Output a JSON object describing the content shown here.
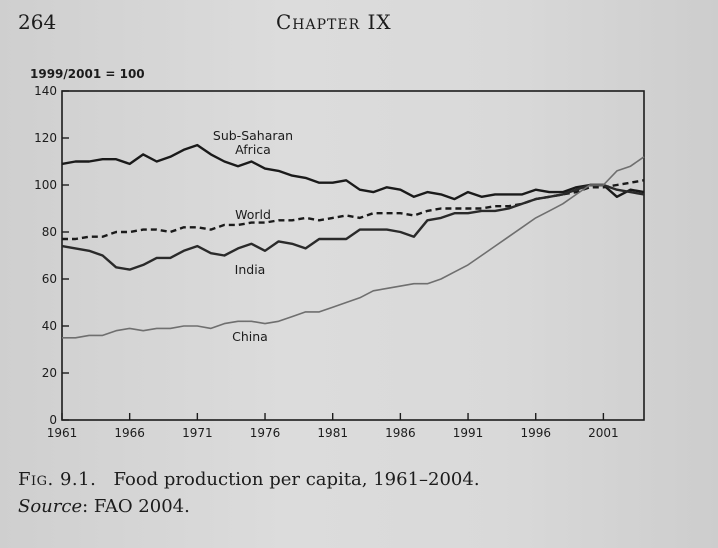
{
  "header": {
    "page_number": "264",
    "chapter": "Chapter IX"
  },
  "caption": {
    "figure_label": "Fig. 9.1.",
    "title": "Food production per capita, 1961–2004.",
    "source_label": "Source",
    "source_text": ": FAO 2004."
  },
  "chart_data": {
    "type": "line",
    "index_label": "1999/2001 = 100",
    "ylim": [
      0,
      140
    ],
    "yticks": [
      0,
      20,
      40,
      60,
      80,
      100,
      120,
      140
    ],
    "xlim": [
      1961,
      2004
    ],
    "xticks": [
      1961,
      1966,
      1971,
      1976,
      1981,
      1986,
      1991,
      1996,
      2001
    ],
    "x": [
      1961,
      1962,
      1963,
      1964,
      1965,
      1966,
      1967,
      1968,
      1969,
      1970,
      1971,
      1972,
      1973,
      1974,
      1975,
      1976,
      1977,
      1978,
      1979,
      1980,
      1981,
      1982,
      1983,
      1984,
      1985,
      1986,
      1987,
      1988,
      1989,
      1990,
      1991,
      1992,
      1993,
      1994,
      1995,
      1996,
      1997,
      1998,
      1999,
      2000,
      2001,
      2002,
      2003,
      2004
    ],
    "series": [
      {
        "name": "Sub-Saharan Africa",
        "label_lines": [
          "Sub-Saharan",
          "Africa"
        ],
        "style": "solid",
        "values": [
          109,
          110,
          110,
          111,
          111,
          109,
          113,
          110,
          112,
          115,
          117,
          113,
          110,
          108,
          110,
          107,
          106,
          104,
          103,
          101,
          101,
          102,
          98,
          97,
          99,
          98,
          95,
          97,
          96,
          94,
          97,
          95,
          96,
          96,
          96,
          98,
          97,
          97,
          99,
          100,
          100,
          95,
          98,
          97
        ]
      },
      {
        "name": "World",
        "label_lines": [
          "World"
        ],
        "style": "dashed",
        "values": [
          77,
          77,
          78,
          78,
          80,
          80,
          81,
          81,
          80,
          82,
          82,
          81,
          83,
          83,
          84,
          84,
          85,
          85,
          86,
          85,
          86,
          87,
          86,
          88,
          88,
          88,
          87,
          89,
          90,
          90,
          90,
          90,
          91,
          91,
          92,
          94,
          95,
          96,
          97,
          99,
          99,
          100,
          101,
          102
        ]
      },
      {
        "name": "India",
        "label_lines": [
          "India"
        ],
        "style": "solid",
        "values": [
          74,
          73,
          72,
          70,
          65,
          64,
          66,
          69,
          69,
          72,
          74,
          71,
          70,
          73,
          75,
          72,
          76,
          75,
          73,
          77,
          77,
          77,
          81,
          81,
          81,
          80,
          78,
          85,
          86,
          88,
          88,
          89,
          89,
          90,
          92,
          94,
          95,
          96,
          98,
          100,
          100,
          98,
          97,
          96
        ]
      },
      {
        "name": "China",
        "label_lines": [
          "China"
        ],
        "style": "solid",
        "values": [
          35,
          35,
          36,
          36,
          38,
          39,
          38,
          39,
          39,
          40,
          40,
          39,
          41,
          42,
          42,
          41,
          42,
          44,
          46,
          46,
          48,
          50,
          52,
          55,
          56,
          57,
          58,
          58,
          60,
          63,
          66,
          70,
          74,
          78,
          82,
          86,
          89,
          92,
          96,
          100,
          100,
          106,
          108,
          112
        ]
      }
    ]
  }
}
